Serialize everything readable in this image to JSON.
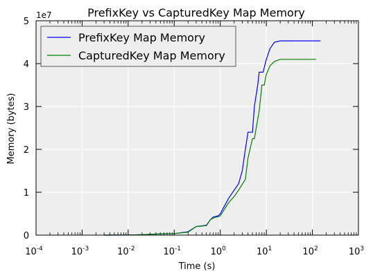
{
  "chart_data": {
    "type": "line",
    "title": "PrefixKey vs CapturedKey Map Memory",
    "xlabel": "Time (s)",
    "ylabel": "Memory (bytes)",
    "x_scale": "log",
    "xlim": [
      0.0001,
      1000
    ],
    "ylim": [
      0,
      50000000
    ],
    "y_offset_label": "1e7",
    "x_ticks": [
      {
        "value": 0.0001,
        "base": "10",
        "exp": "-4"
      },
      {
        "value": 0.001,
        "base": "10",
        "exp": "-3"
      },
      {
        "value": 0.01,
        "base": "10",
        "exp": "-2"
      },
      {
        "value": 0.1,
        "base": "10",
        "exp": "-1"
      },
      {
        "value": 1,
        "base": "10",
        "exp": "0"
      },
      {
        "value": 10,
        "base": "10",
        "exp": "1"
      },
      {
        "value": 100,
        "base": "10",
        "exp": "2"
      },
      {
        "value": 1000,
        "base": "10",
        "exp": "3"
      }
    ],
    "y_ticks": [
      {
        "value": 0,
        "label": "0"
      },
      {
        "value": 10000000,
        "label": "1"
      },
      {
        "value": 20000000,
        "label": "2"
      },
      {
        "value": 30000000,
        "label": "3"
      },
      {
        "value": 40000000,
        "label": "4"
      },
      {
        "value": 50000000,
        "label": "5"
      }
    ],
    "grid": true,
    "legend_position": "top-left",
    "background_color": "#eeeeee",
    "series": [
      {
        "name": "PrefixKey Map Memory",
        "color": "#0000ff",
        "points": [
          [
            0.003,
            0
          ],
          [
            0.01,
            20000
          ],
          [
            0.02,
            100000
          ],
          [
            0.05,
            300000
          ],
          [
            0.1,
            350000
          ],
          [
            0.2,
            800000
          ],
          [
            0.3,
            2000000
          ],
          [
            0.5,
            2300000
          ],
          [
            0.6,
            3500000
          ],
          [
            0.7,
            4200000
          ],
          [
            0.9,
            4500000
          ],
          [
            1.0,
            5000000
          ],
          [
            1.5,
            8500000
          ],
          [
            2.0,
            10500000
          ],
          [
            2.5,
            12000000
          ],
          [
            3.0,
            15000000
          ],
          [
            3.5,
            20000000
          ],
          [
            4.0,
            24000000
          ],
          [
            5.0,
            24000000
          ],
          [
            5.5,
            30000000
          ],
          [
            6.5,
            35000000
          ],
          [
            7.0,
            38000000
          ],
          [
            8.5,
            38000000
          ],
          [
            10,
            41000000
          ],
          [
            12,
            43500000
          ],
          [
            15,
            45000000
          ],
          [
            20,
            45300000
          ],
          [
            150,
            45300000
          ]
        ]
      },
      {
        "name": "CapturedKey Map Memory",
        "color": "#008000",
        "points": [
          [
            0.003,
            0
          ],
          [
            0.01,
            20000
          ],
          [
            0.02,
            100000
          ],
          [
            0.05,
            300000
          ],
          [
            0.1,
            350000
          ],
          [
            0.2,
            700000
          ],
          [
            0.3,
            2000000
          ],
          [
            0.5,
            2200000
          ],
          [
            0.6,
            3500000
          ],
          [
            0.7,
            4000000
          ],
          [
            0.9,
            4300000
          ],
          [
            1.0,
            4500000
          ],
          [
            1.5,
            7500000
          ],
          [
            2.0,
            9000000
          ],
          [
            2.5,
            10500000
          ],
          [
            3.5,
            13000000
          ],
          [
            4.0,
            18000000
          ],
          [
            5.0,
            22500000
          ],
          [
            5.5,
            22500000
          ],
          [
            7.0,
            29000000
          ],
          [
            8.0,
            35000000
          ],
          [
            9.0,
            35000000
          ],
          [
            10,
            37500000
          ],
          [
            12,
            39500000
          ],
          [
            15,
            40500000
          ],
          [
            20,
            41000000
          ],
          [
            120,
            41000000
          ]
        ]
      }
    ]
  }
}
